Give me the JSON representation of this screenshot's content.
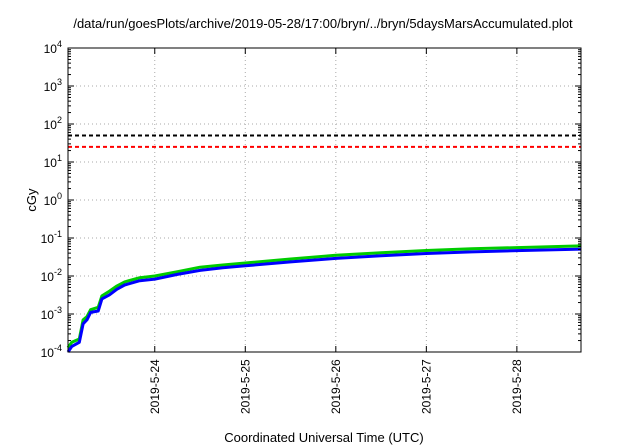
{
  "chart_data": {
    "type": "line",
    "title": "/data/run/goesPlots/archive/2019-05-28/17:00/bryn/../bryn/5daysMarsAccumulated.plot",
    "xlabel": "Coordinated Universal Time (UTC)",
    "ylabel": "cGy",
    "y_scale": "log",
    "ylim": [
      0.0001,
      10000
    ],
    "y_ticks": [
      {
        "base": "10",
        "exp": "-4",
        "value": 0.0001
      },
      {
        "base": "10",
        "exp": "-3",
        "value": 0.001
      },
      {
        "base": "10",
        "exp": "-2",
        "value": 0.01
      },
      {
        "base": "10",
        "exp": "-1",
        "value": 0.1
      },
      {
        "base": "10",
        "exp": "0",
        "value": 1
      },
      {
        "base": "10",
        "exp": "1",
        "value": 10
      },
      {
        "base": "10",
        "exp": "2",
        "value": 100
      },
      {
        "base": "10",
        "exp": "3",
        "value": 1000
      },
      {
        "base": "10",
        "exp": "4",
        "value": 10000
      }
    ],
    "xlim": [
      "2019-05-23 01:00",
      "2019-05-28 17:00"
    ],
    "x_ticks": [
      "2019-5-24",
      "2019-5-25",
      "2019-5-26",
      "2019-5-27",
      "2019-5-28"
    ],
    "grid": true,
    "series": [
      {
        "color": "#00cc00",
        "style": "solid",
        "points": [
          [
            "2019-05-23 01:00",
            0.00013
          ],
          [
            "2019-05-23 02:00",
            0.00018
          ],
          [
            "2019-05-23 04:00",
            0.00022
          ],
          [
            "2019-05-23 05:00",
            0.0007
          ],
          [
            "2019-05-23 06:00",
            0.00085
          ],
          [
            "2019-05-23 07:00",
            0.0013
          ],
          [
            "2019-05-23 09:00",
            0.0015
          ],
          [
            "2019-05-23 10:00",
            0.003
          ],
          [
            "2019-05-23 12:00",
            0.004
          ],
          [
            "2019-05-23 14:00",
            0.0055
          ],
          [
            "2019-05-23 16:00",
            0.007
          ],
          [
            "2019-05-23 20:00",
            0.009
          ],
          [
            "2019-05-24 00:00",
            0.01
          ],
          [
            "2019-05-24 06:00",
            0.013
          ],
          [
            "2019-05-24 12:00",
            0.017
          ],
          [
            "2019-05-24 18:00",
            0.0195
          ],
          [
            "2019-05-25 00:00",
            0.022
          ],
          [
            "2019-05-25 12:00",
            0.028
          ],
          [
            "2019-05-26 00:00",
            0.035
          ],
          [
            "2019-05-26 12:00",
            0.041
          ],
          [
            "2019-05-27 00:00",
            0.047
          ],
          [
            "2019-05-27 12:00",
            0.052
          ],
          [
            "2019-05-28 00:00",
            0.056
          ],
          [
            "2019-05-28 17:00",
            0.062
          ]
        ]
      },
      {
        "color": "#0000ff",
        "style": "solid",
        "points": [
          [
            "2019-05-23 01:00",
            0.0001
          ],
          [
            "2019-05-23 02:00",
            0.00014
          ],
          [
            "2019-05-23 04:00",
            0.00018
          ],
          [
            "2019-05-23 05:00",
            0.00055
          ],
          [
            "2019-05-23 06:00",
            0.0007
          ],
          [
            "2019-05-23 07:00",
            0.0011
          ],
          [
            "2019-05-23 09:00",
            0.0012
          ],
          [
            "2019-05-23 10:00",
            0.0025
          ],
          [
            "2019-05-23 12:00",
            0.0032
          ],
          [
            "2019-05-23 14:00",
            0.0045
          ],
          [
            "2019-05-23 16:00",
            0.0058
          ],
          [
            "2019-05-23 20:00",
            0.0075
          ],
          [
            "2019-05-24 00:00",
            0.0083
          ],
          [
            "2019-05-24 06:00",
            0.011
          ],
          [
            "2019-05-24 12:00",
            0.014
          ],
          [
            "2019-05-24 18:00",
            0.0165
          ],
          [
            "2019-05-25 00:00",
            0.0185
          ],
          [
            "2019-05-25 12:00",
            0.0235
          ],
          [
            "2019-05-26 00:00",
            0.029
          ],
          [
            "2019-05-26 12:00",
            0.034
          ],
          [
            "2019-05-27 00:00",
            0.039
          ],
          [
            "2019-05-27 12:00",
            0.043
          ],
          [
            "2019-05-28 00:00",
            0.0465
          ],
          [
            "2019-05-28 17:00",
            0.051
          ]
        ]
      }
    ],
    "reference_lines": [
      {
        "value": 50,
        "color": "#000000",
        "style": "dashed"
      },
      {
        "value": 25,
        "color": "#ff0000",
        "style": "dashed"
      }
    ]
  }
}
